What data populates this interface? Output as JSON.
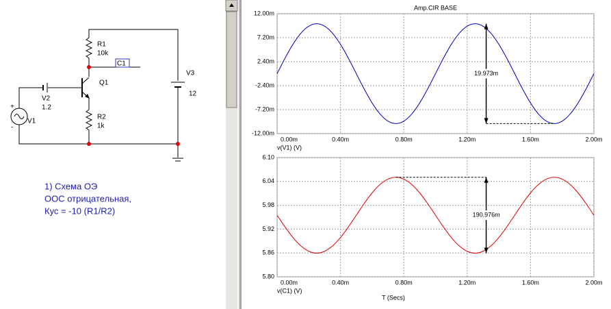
{
  "schematic": {
    "components": [
      {
        "name": "R1",
        "value": "10k"
      },
      {
        "name": "R2",
        "value": "1k"
      },
      {
        "name": "V1"
      },
      {
        "name": "V2",
        "value": "1.2"
      },
      {
        "name": "V3",
        "value": "12"
      },
      {
        "name": "Q1"
      }
    ],
    "node_label": "C1",
    "polarity": [
      "+",
      "-"
    ],
    "note": [
      "1) Схема ОЭ",
      "ООС отрицательная,",
      "Кус = -10 (R1/R2)"
    ]
  },
  "chart_data": [
    {
      "type": "line",
      "title": "Amp.CIR BASE",
      "x": [
        0,
        5e-05,
        0.0001,
        0.00015,
        0.0002,
        0.00025,
        0.0003,
        0.00035,
        0.0004,
        0.00045,
        0.0005,
        0.00055,
        0.0006,
        0.00065,
        0.0007,
        0.00075,
        0.0008,
        0.00085,
        0.0009,
        0.00095,
        0.001,
        0.00105,
        0.0011,
        0.00115,
        0.0012,
        0.00125,
        0.0013,
        0.00135,
        0.0014,
        0.00145,
        0.0015,
        0.00155,
        0.0016,
        0.00165,
        0.0017,
        0.00175,
        0.0018,
        0.00185,
        0.0019,
        0.00195,
        0.002
      ],
      "series": [
        {
          "name": "v(V1) (V)",
          "color": "#0000c0",
          "values": [
            0,
            0.00309,
            0.00587,
            0.00808,
            0.0095,
            0.00999,
            0.0095,
            0.00808,
            0.00587,
            0.00309,
            0,
            -0.00309,
            -0.00587,
            -0.00808,
            -0.0095,
            -0.00999,
            -0.0095,
            -0.00808,
            -0.00587,
            -0.00309,
            0,
            0.00309,
            0.00587,
            0.00808,
            0.0095,
            0.00999,
            0.0095,
            0.00808,
            0.00587,
            0.00309,
            0,
            -0.00309,
            -0.00587,
            -0.00808,
            -0.0095,
            -0.00999,
            -0.0095,
            -0.00808,
            -0.00587,
            -0.00309,
            0
          ]
        }
      ],
      "xlim": [
        0,
        0.002
      ],
      "xticks": [
        {
          "value": 0,
          "label": "0.00m"
        },
        {
          "value": 0.0004,
          "label": "0.40m"
        },
        {
          "value": 0.0008,
          "label": "0.80m"
        },
        {
          "value": 0.0012,
          "label": "1.20m"
        },
        {
          "value": 0.0016,
          "label": "1.60m"
        },
        {
          "value": 0.002,
          "label": "2.00m"
        }
      ],
      "ylim": [
        -0.012,
        0.012
      ],
      "yticks": [
        {
          "value": 0.012,
          "label": "12.00m"
        },
        {
          "value": 0.0072,
          "label": "7.20m"
        },
        {
          "value": 0.0024,
          "label": "2.40m"
        },
        {
          "value": -0.0024,
          "label": "-2.40m"
        },
        {
          "value": -0.0072,
          "label": "-7.20m"
        },
        {
          "value": -0.012,
          "label": "-12.00m"
        }
      ],
      "grid": true,
      "annotation": {
        "text": "19.973m",
        "x": 0.00132,
        "y_from": 0.00999,
        "y_to": -0.00999,
        "dash": {
          "y": -0.00999,
          "x_from": 0.00132,
          "x_to": 0.00175
        }
      }
    },
    {
      "type": "line",
      "xlabel": "T (Secs)",
      "x": [
        0,
        5e-05,
        0.0001,
        0.00015,
        0.0002,
        0.00025,
        0.0003,
        0.00035,
        0.0004,
        0.00045,
        0.0005,
        0.00055,
        0.0006,
        0.00065,
        0.0007,
        0.00075,
        0.0008,
        0.00085,
        0.0009,
        0.00095,
        0.001,
        0.00105,
        0.0011,
        0.00115,
        0.0012,
        0.00125,
        0.0013,
        0.00135,
        0.0014,
        0.00145,
        0.0015,
        0.00155,
        0.0016,
        0.00165,
        0.0017,
        0.00175,
        0.0018,
        0.00185,
        0.0019,
        0.00195,
        0.002
      ],
      "series": [
        {
          "name": "v(C1) (V)",
          "color": "#e00000",
          "values": [
            5.955,
            5.9255,
            5.8988,
            5.8777,
            5.8642,
            5.8595,
            5.8642,
            5.8777,
            5.8988,
            5.9255,
            5.955,
            5.9845,
            6.0112,
            6.0323,
            6.0458,
            6.0505,
            6.0458,
            6.0323,
            6.0112,
            5.9845,
            5.955,
            5.9255,
            5.8988,
            5.8777,
            5.8642,
            5.8595,
            5.8642,
            5.8777,
            5.8988,
            5.9255,
            5.955,
            5.9845,
            6.0112,
            6.0323,
            6.0458,
            6.0505,
            6.0458,
            6.0323,
            6.0112,
            5.9845,
            5.955
          ]
        }
      ],
      "xlim": [
        0,
        0.002
      ],
      "xticks": [
        {
          "value": 0,
          "label": "0.00m"
        },
        {
          "value": 0.0004,
          "label": "0.40m"
        },
        {
          "value": 0.0008,
          "label": "0.80m"
        },
        {
          "value": 0.0012,
          "label": "1.20m"
        },
        {
          "value": 0.0016,
          "label": "1.60m"
        },
        {
          "value": 0.002,
          "label": "2.00m"
        }
      ],
      "ylim": [
        5.8,
        6.1
      ],
      "yticks": [
        {
          "value": 6.1,
          "label": "6.10"
        },
        6.04,
        5.98,
        5.92,
        5.86,
        {
          "value": 5.8,
          "label": "5.80"
        }
      ],
      "grid": true,
      "annotation": {
        "text": "190.976m",
        "x": 0.00132,
        "y_from": 6.0505,
        "y_to": 5.8595,
        "dash": {
          "y": 6.0505,
          "x_from": 0.00075,
          "x_to": 0.00132
        }
      }
    }
  ]
}
